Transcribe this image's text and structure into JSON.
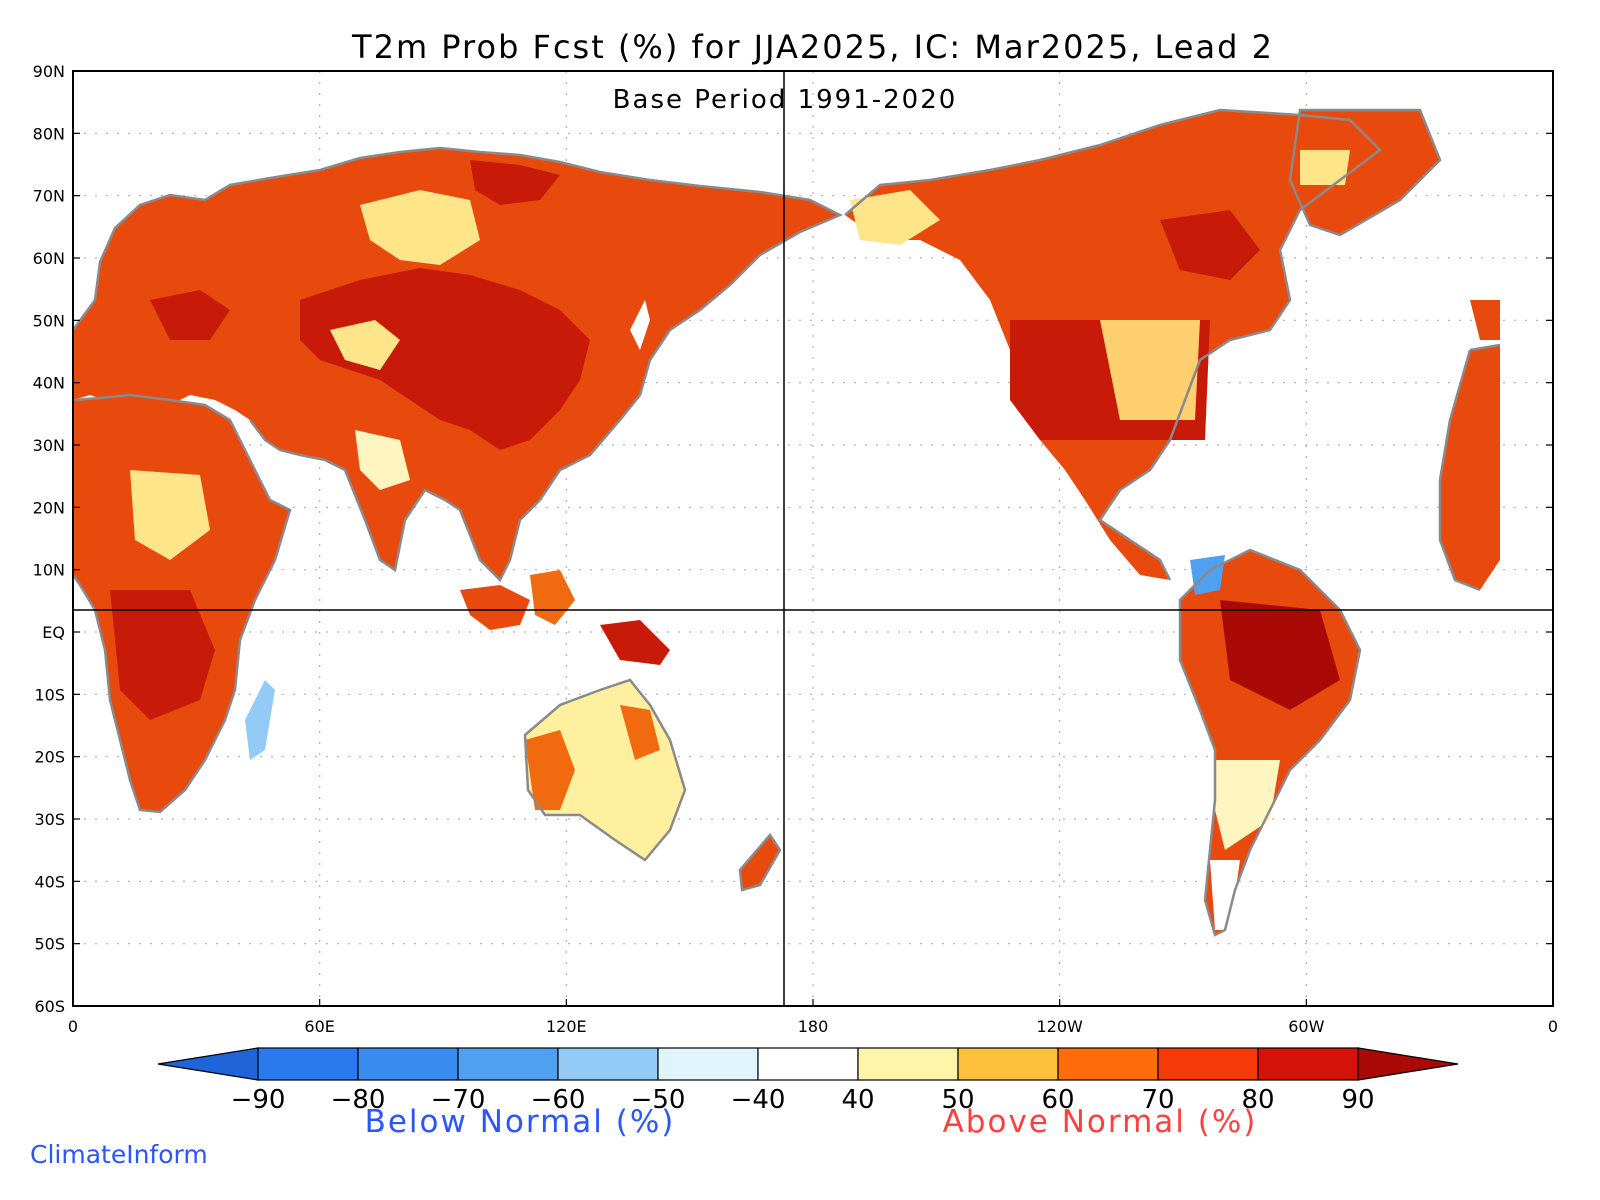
{
  "title": "T2m Prob Fcst (%) for JJA2025, IC: Mar2025, Lead 2",
  "subtitle": "Base Period 1991-2020",
  "credit": "ClimateInform",
  "lat_labels": [
    "90N",
    "80N",
    "70N",
    "60N",
    "50N",
    "40N",
    "30N",
    "20N",
    "10N",
    "EQ",
    "10S",
    "20S",
    "30S",
    "40S",
    "50S",
    "60S"
  ],
  "lon_labels": [
    "0",
    "60E",
    "120E",
    "180",
    "120W",
    "60W",
    "0"
  ],
  "colorbar": {
    "ticks": [
      "-90",
      "-80",
      "-70",
      "-60",
      "-50",
      "-40",
      "40",
      "50",
      "60",
      "70",
      "80",
      "90"
    ],
    "colors": [
      "#1f64d8",
      "#2a7aee",
      "#3a8cf0",
      "#4fa0f0",
      "#94cbf6",
      "#dff4fb",
      "#ffffff",
      "#fff5a8",
      "#ffc03c",
      "#ff6d0a",
      "#f53a08",
      "#d31208",
      "#aa0a06"
    ],
    "below_label": "Below Normal (%)",
    "above_label": "Above Normal (%)",
    "below_color": "#2a55ff",
    "above_color": "#ff4040"
  },
  "colors": {
    "coast": "#8a8a8a",
    "grid": "#b0b0b0",
    "ocean": "#ffffff"
  }
}
